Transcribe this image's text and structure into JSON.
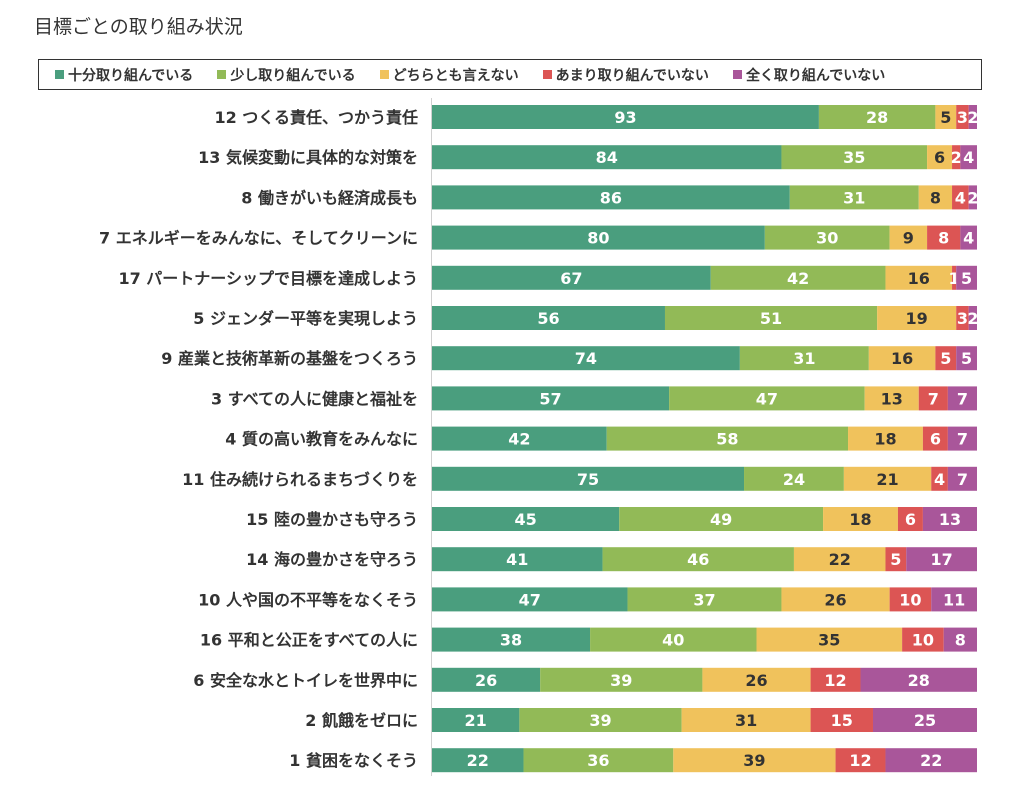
{
  "chart_data": {
    "type": "bar",
    "orientation": "horizontal",
    "stacked": true,
    "title": "目標ごとの取り組み状況",
    "legend_position": "top",
    "grid": false,
    "categories": [
      "12 つくる責任、つかう責任",
      "13 気候変動に具体的な対策を",
      "8 働きがいも経済成長も",
      "7 エネルギーをみんなに、そしてクリーンに",
      "17 パートナーシップで目標を達成しよう",
      "5 ジェンダー平等を実現しよう",
      "9 産業と技術革新の基盤をつくろう",
      "3 すべての人に健康と福祉を",
      "4 質の高い教育をみんなに",
      "11 住み続けられるまちづくりを",
      "15 陸の豊かさも守ろう",
      "14 海の豊かさを守ろう",
      "10 人や国の不平等をなくそう",
      "16 平和と公正をすべての人に",
      "6 安全な水とトイレを世界中に",
      "2 飢餓をゼロに",
      "1 貧困をなくそう"
    ],
    "series": [
      {
        "name": "十分取り組んでいる",
        "color": "#4a9e7e",
        "label_color": "#ffffff",
        "values": [
          93,
          84,
          86,
          80,
          67,
          56,
          74,
          57,
          42,
          75,
          45,
          41,
          47,
          38,
          26,
          21,
          22
        ]
      },
      {
        "name": "少し取り組んでいる",
        "color": "#92ba57",
        "label_color": "#ffffff",
        "values": [
          28,
          35,
          31,
          30,
          42,
          51,
          31,
          47,
          58,
          24,
          49,
          46,
          37,
          40,
          39,
          39,
          36
        ]
      },
      {
        "name": "どちらとも言えない",
        "color": "#f0c25c",
        "label_color": "#333333",
        "values": [
          5,
          6,
          8,
          9,
          16,
          19,
          16,
          13,
          18,
          21,
          18,
          22,
          26,
          35,
          26,
          31,
          39
        ]
      },
      {
        "name": "あまり取り組んでいない",
        "color": "#dc5554",
        "label_color": "#ffffff",
        "values": [
          3,
          2,
          4,
          8,
          1,
          3,
          5,
          7,
          6,
          4,
          6,
          5,
          10,
          10,
          12,
          15,
          12
        ]
      },
      {
        "name": "全く取り組んでいない",
        "color": "#a9569a",
        "label_color": "#ffffff",
        "values": [
          2,
          4,
          2,
          4,
          5,
          2,
          5,
          7,
          7,
          7,
          13,
          17,
          11,
          8,
          28,
          25,
          22
        ]
      }
    ]
  }
}
